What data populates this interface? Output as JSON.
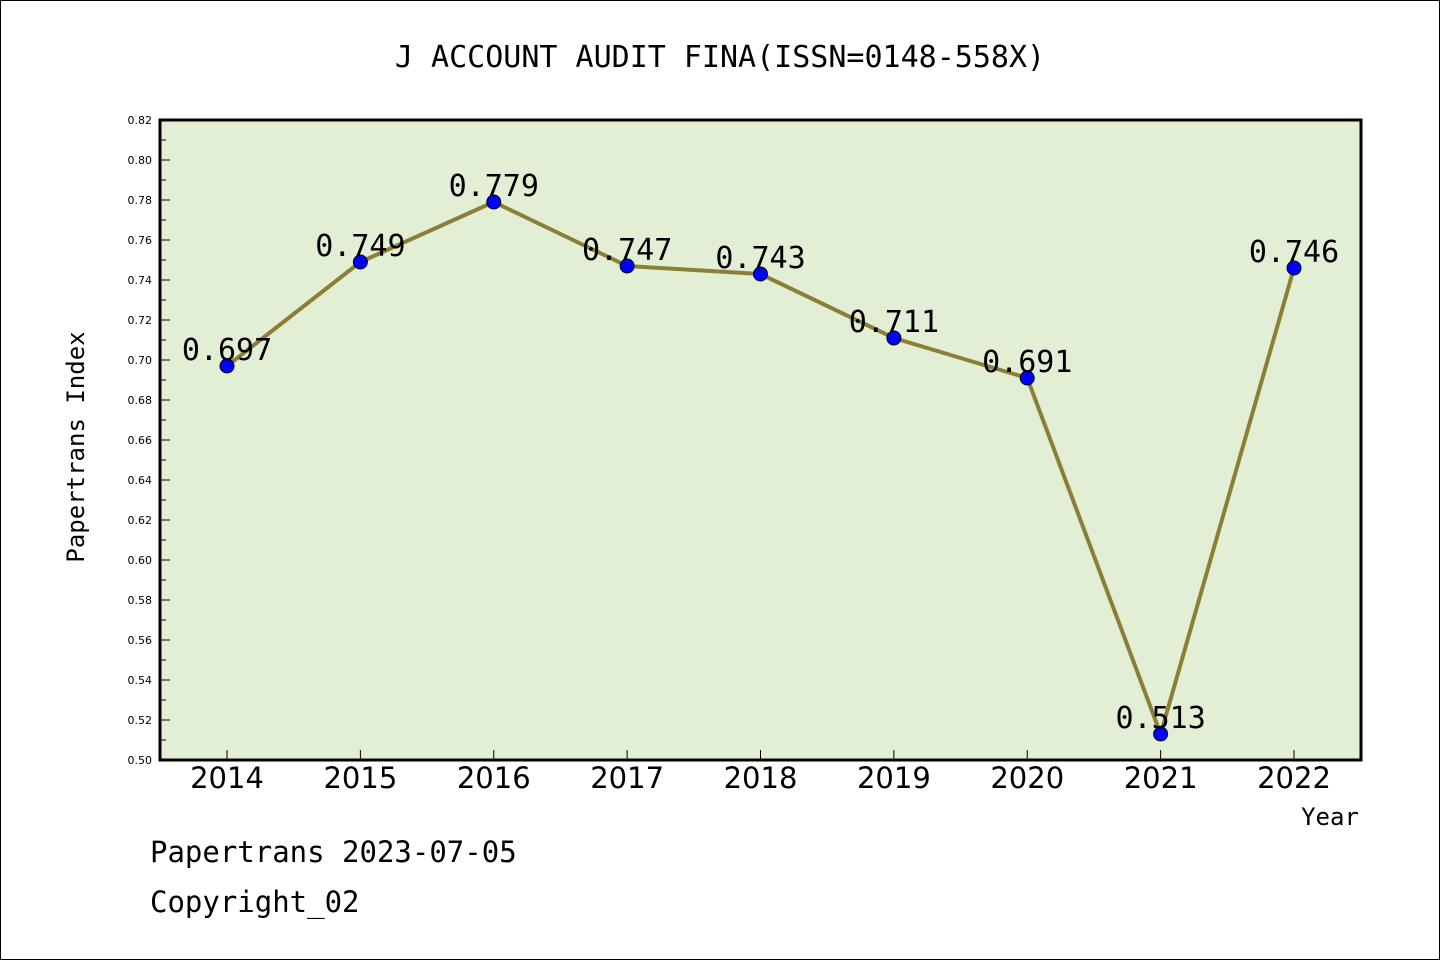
{
  "chart_data": {
    "type": "line",
    "title": "J ACCOUNT AUDIT FINA(ISSN=0148-558X)",
    "xlabel": "Year",
    "ylabel": "Papertrans Index",
    "categories": [
      "2014",
      "2015",
      "2016",
      "2017",
      "2018",
      "2019",
      "2020",
      "2021",
      "2022"
    ],
    "series": [
      {
        "values": [
          0.697,
          0.749,
          0.779,
          0.747,
          0.743,
          0.711,
          0.691,
          0.513,
          0.746
        ],
        "labels": [
          "0.697",
          "0.749",
          "0.779",
          "0.747",
          "0.743",
          "0.711",
          "0.691",
          "0.513",
          "0.746"
        ],
        "line_color": "#8b7f38",
        "marker_color": "#0000ff"
      }
    ],
    "ylim": [
      0.5,
      0.82
    ],
    "yticks": [
      "0.50",
      "0.52",
      "0.54",
      "0.56",
      "0.58",
      "0.60",
      "0.62",
      "0.64",
      "0.66",
      "0.68",
      "0.70",
      "0.72",
      "0.74",
      "0.76",
      "0.78",
      "0.80",
      "0.82"
    ],
    "plot_background": "#e2efd5",
    "grid": false,
    "legend": "none"
  },
  "footer": {
    "line1": "Papertrans 2023-07-05",
    "line2": "Copyright_02"
  }
}
